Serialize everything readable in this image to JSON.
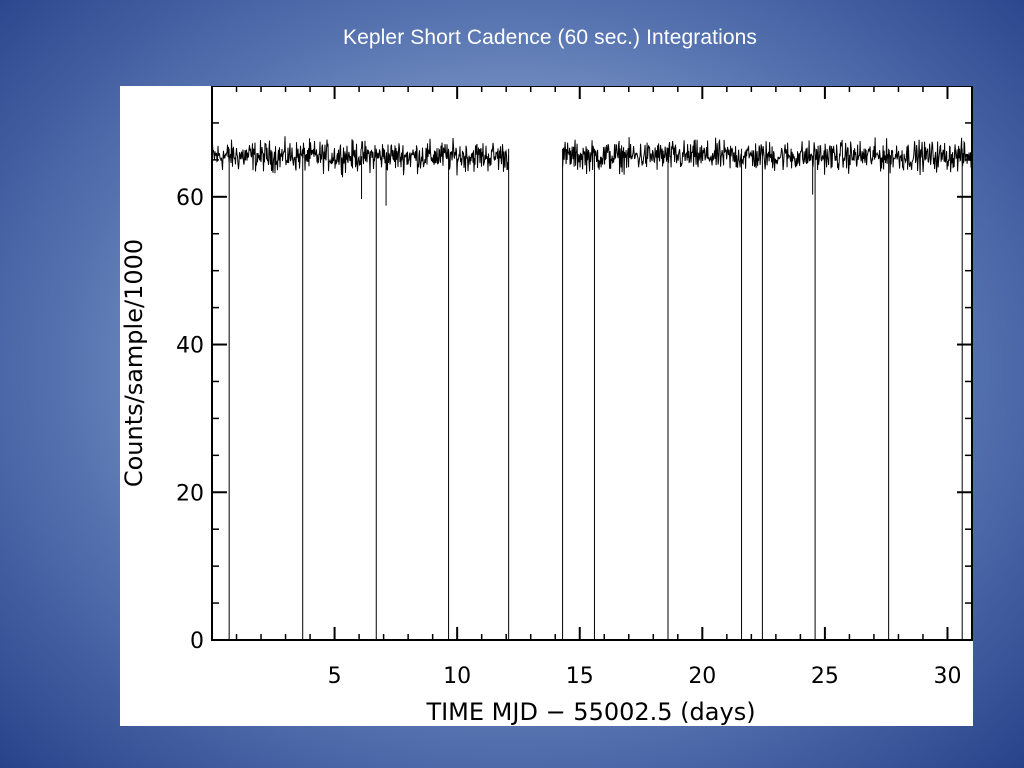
{
  "slide": {
    "title": "Kepler Short Cadence (60 sec.) Integrations"
  },
  "colors": {
    "background_center": "#b7c6e2",
    "background_edge": "#28428a",
    "plot_background": "#ffffff",
    "data_line": "#000000"
  },
  "chart_data": {
    "type": "line",
    "title": "",
    "xlabel": "TIME MJD − 55002.5 (days)",
    "ylabel": "Counts/sample/1000",
    "xlim": [
      0,
      31
    ],
    "ylim": [
      0,
      75
    ],
    "xticks": [
      5,
      10,
      15,
      20,
      25,
      30
    ],
    "yticks": [
      0,
      20,
      40,
      60
    ],
    "grid": false,
    "series": [
      {
        "baseline": 65.5,
        "noise_amplitude": 2,
        "segments": [
          [
            0,
            12.1
          ],
          [
            14.3,
            31
          ]
        ],
        "drops_to_zero_at": [
          0.7,
          3.7,
          6.7,
          9.65,
          12.1,
          14.3,
          15.6,
          18.6,
          21.6,
          22.45,
          24.6,
          27.6,
          30.6
        ],
        "low_dips": [
          {
            "x": 6.1,
            "y": 59.7
          },
          {
            "x": 7.1,
            "y": 58.8
          },
          {
            "x": 24.5,
            "y": 60.3
          }
        ]
      }
    ]
  }
}
